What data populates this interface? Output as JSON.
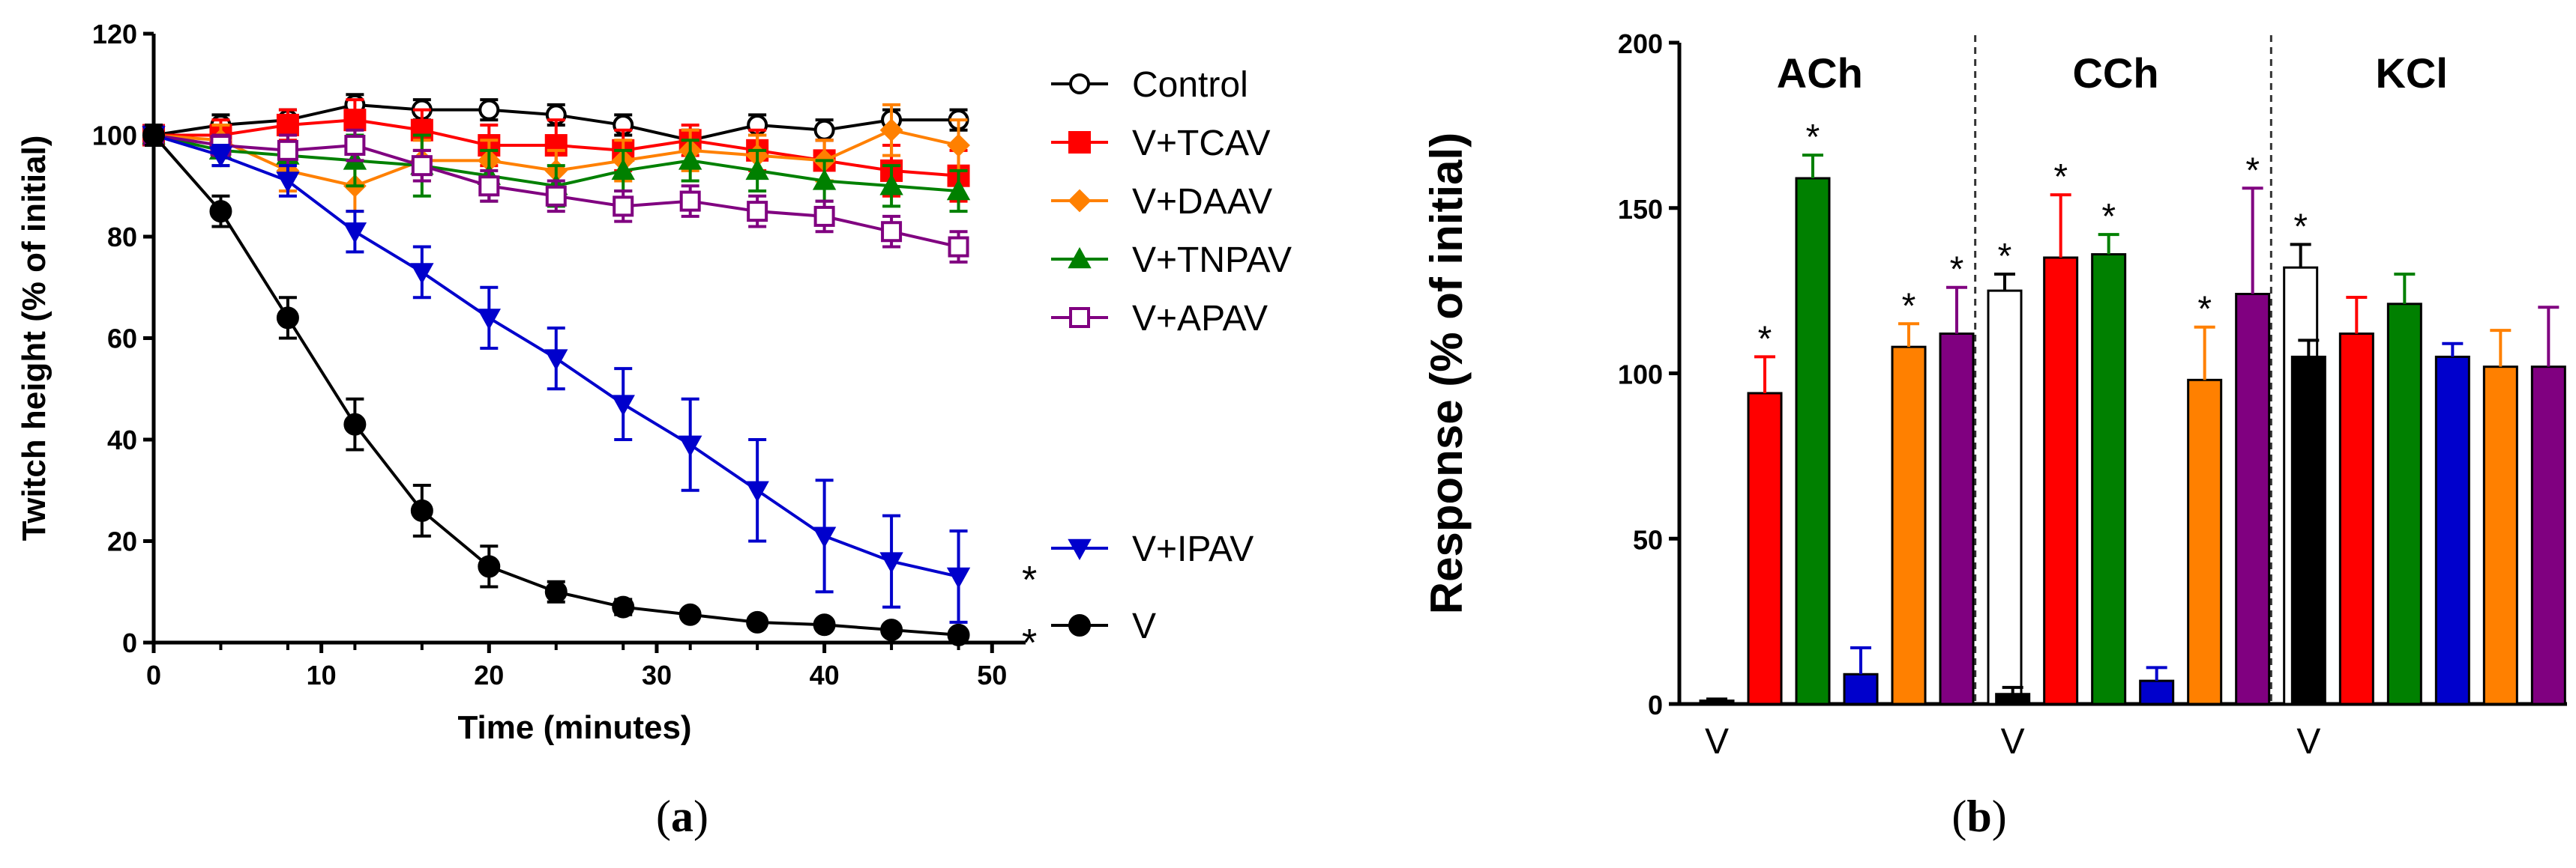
{
  "panels": {
    "a": {
      "open": "(",
      "letter": "a",
      "close": ")"
    },
    "b": {
      "open": "(",
      "letter": "b",
      "close": ")"
    }
  },
  "chart_data": [
    {
      "id": "a",
      "type": "line",
      "xlabel": "Time (minutes)",
      "ylabel": "Twitch height (% of initial)",
      "xlim": [
        0,
        52
      ],
      "ylim": [
        0,
        120
      ],
      "xticks": [
        "0",
        "10",
        "20",
        "30",
        "40",
        "50"
      ],
      "yticks": [
        "0",
        "20",
        "40",
        "60",
        "80",
        "100",
        "120"
      ],
      "x": [
        0,
        4,
        8,
        12,
        16,
        20,
        24,
        28,
        32,
        36,
        40,
        44,
        48
      ],
      "series": [
        {
          "name": "Control",
          "color": "#000000",
          "marker": "circle-open",
          "values": [
            100,
            102,
            103,
            106,
            105,
            105,
            104,
            102,
            99,
            102,
            101,
            103,
            103
          ],
          "err": [
            2,
            2,
            2,
            2,
            2,
            2,
            2,
            2,
            2,
            2,
            2,
            2,
            2
          ]
        },
        {
          "name": "V+TCAV",
          "color": "#ff0000",
          "marker": "square",
          "values": [
            100,
            100,
            102,
            103,
            101,
            98,
            98,
            97,
            99,
            97,
            95,
            93,
            92
          ],
          "err": [
            2,
            3,
            3,
            4,
            4,
            4,
            5,
            4,
            3,
            4,
            4,
            5,
            5
          ]
        },
        {
          "name": "V+DAAV",
          "color": "#ff8000",
          "marker": "diamond",
          "values": [
            100,
            99,
            93,
            90,
            95,
            95,
            93,
            95,
            97,
            96,
            95,
            101,
            98
          ],
          "err": [
            2,
            3,
            4,
            5,
            4,
            4,
            4,
            4,
            4,
            4,
            4,
            5,
            5
          ]
        },
        {
          "name": "V+TNPAV",
          "color": "#008000",
          "marker": "triangle-up",
          "values": [
            100,
            97,
            96,
            95,
            94,
            92,
            90,
            93,
            95,
            93,
            91,
            90,
            89
          ],
          "err": [
            2,
            3,
            4,
            5,
            6,
            5,
            4,
            4,
            4,
            4,
            4,
            4,
            4
          ]
        },
        {
          "name": "V+APAV",
          "color": "#800080",
          "marker": "square-open",
          "values": [
            100,
            98,
            97,
            98,
            94,
            90,
            88,
            86,
            87,
            85,
            84,
            81,
            78
          ],
          "err": [
            2,
            2,
            3,
            3,
            3,
            3,
            3,
            3,
            3,
            3,
            3,
            3,
            3
          ]
        },
        {
          "name": "V+IPAV",
          "color": "#0000cc",
          "marker": "triangle-down",
          "values": [
            100,
            96,
            91,
            81,
            73,
            64,
            56,
            47,
            39,
            30,
            21,
            16,
            13
          ],
          "err": [
            2,
            2,
            3,
            4,
            5,
            6,
            6,
            7,
            9,
            10,
            11,
            9,
            9
          ]
        },
        {
          "name": "V",
          "color": "#000000",
          "marker": "circle",
          "values": [
            100,
            85,
            64,
            43,
            26,
            15,
            10,
            7,
            5.5,
            4,
            3.5,
            2.5,
            1.5
          ],
          "err": [
            2,
            3,
            4,
            5,
            5,
            4,
            2,
            1.5,
            1,
            1,
            1,
            1,
            1
          ]
        }
      ],
      "legend": [
        "Control",
        "V+TCAV",
        "V+DAAV",
        "V+TNPAV",
        "V+APAV",
        "V+IPAV",
        "V"
      ],
      "annotations": [
        {
          "text": "*",
          "series": "V+IPAV"
        },
        {
          "text": "*",
          "series": "V"
        }
      ]
    },
    {
      "id": "b",
      "type": "bar",
      "ylabel": "Response (% of initial)",
      "ylim": [
        0,
        200
      ],
      "yticks": [
        "0",
        "50",
        "100",
        "150",
        "200"
      ],
      "groups": [
        "ACh",
        "CCh",
        "KCl"
      ],
      "group_xlabel": "V",
      "series": [
        {
          "name": "V",
          "color": "#000000",
          "values": [
            1,
            3,
            105
          ],
          "err": [
            0.5,
            2,
            5
          ],
          "sig": [
            false,
            false,
            false
          ]
        },
        {
          "name": "V+TCAV",
          "color": "#ff0000",
          "values": [
            94,
            135,
            112
          ],
          "err": [
            11,
            19,
            11
          ],
          "sig": [
            true,
            true,
            false
          ]
        },
        {
          "name": "V+TNPAV",
          "color": "#008000",
          "values": [
            159,
            136,
            121
          ],
          "err": [
            7,
            6,
            9
          ],
          "sig": [
            true,
            true,
            false
          ]
        },
        {
          "name": "V+IPAV",
          "color": "#0000cc",
          "values": [
            9,
            7,
            105
          ],
          "err": [
            8,
            4,
            4
          ],
          "sig": [
            false,
            false,
            false
          ]
        },
        {
          "name": "V+DAAV",
          "color": "#ff8000",
          "values": [
            108,
            98,
            102
          ],
          "err": [
            7,
            16,
            11
          ],
          "sig": [
            true,
            true,
            false
          ]
        },
        {
          "name": "V+APAV",
          "color": "#800080",
          "values": [
            112,
            124,
            102
          ],
          "err": [
            14,
            32,
            18
          ],
          "sig": [
            true,
            true,
            false
          ]
        },
        {
          "name": "Control",
          "color": "#ffffff",
          "values": [
            125,
            132,
            116
          ],
          "err": [
            5,
            7,
            9
          ],
          "sig": [
            true,
            true,
            false
          ]
        }
      ]
    }
  ]
}
